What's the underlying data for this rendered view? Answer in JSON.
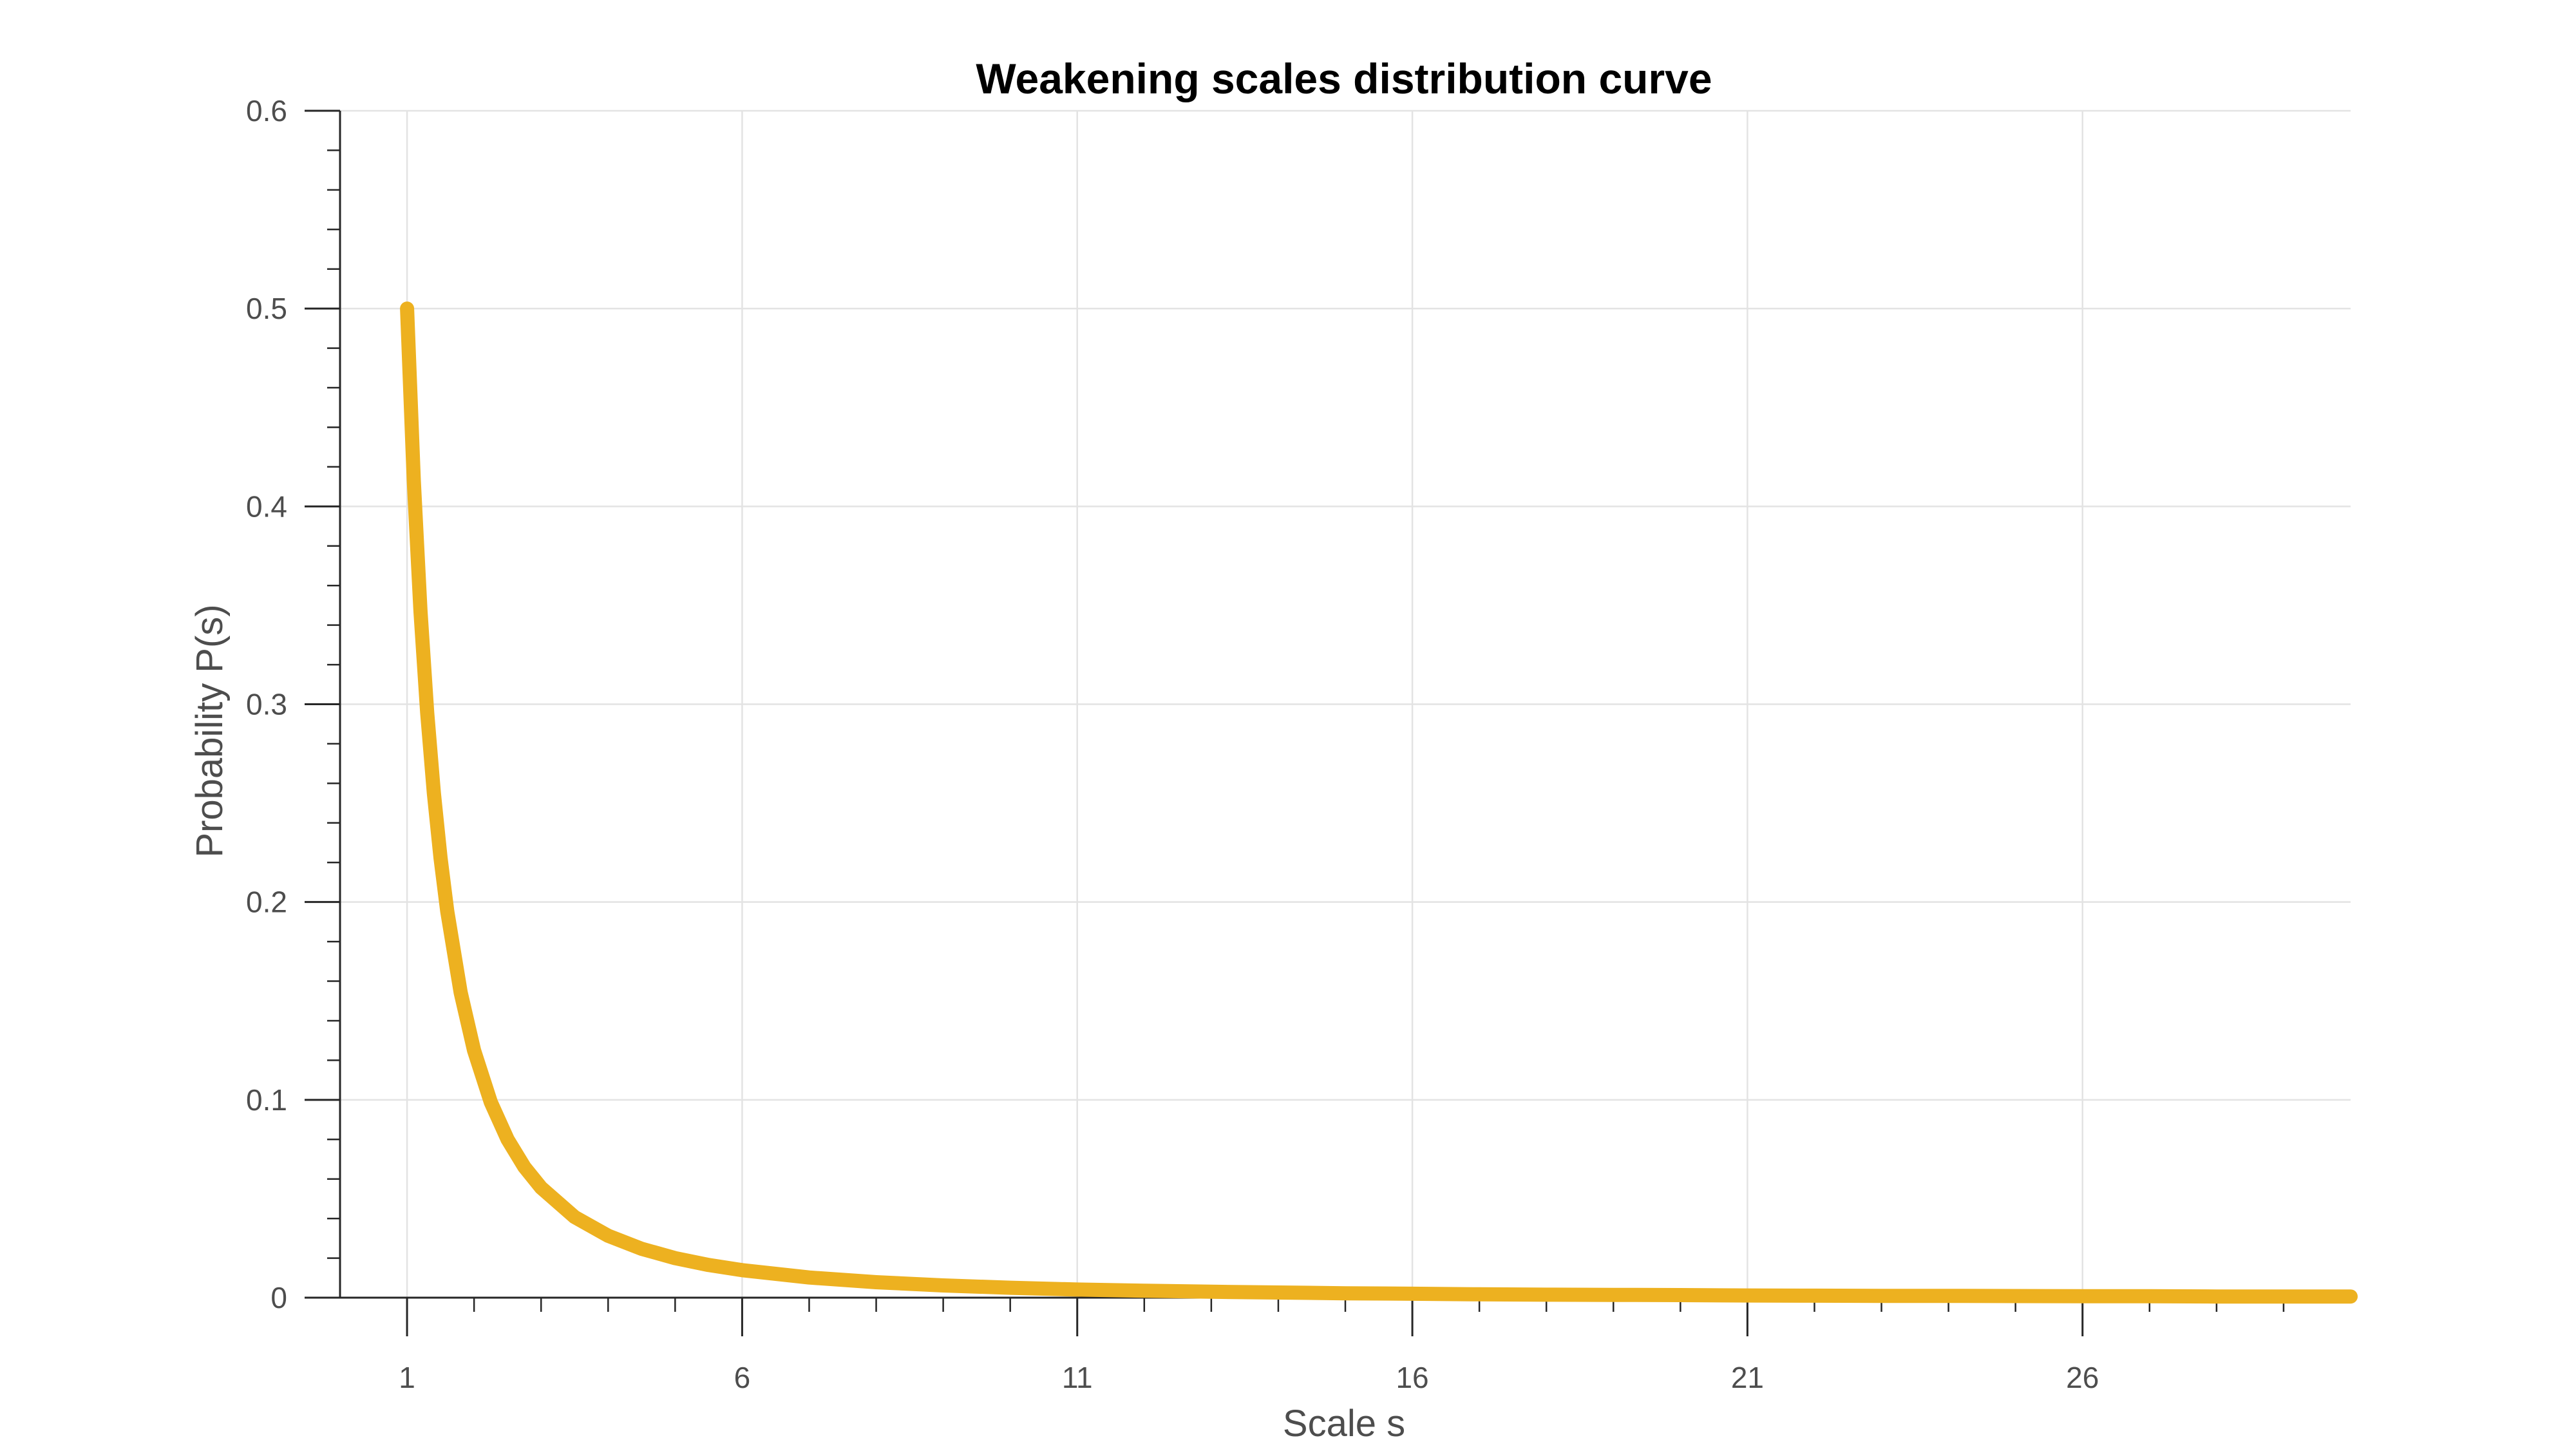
{
  "chart_data": {
    "type": "line",
    "title": "Weakening scales distribution curve",
    "xlabel": "Scale s",
    "ylabel": "Probability P(s)",
    "xlim": [
      0,
      30
    ],
    "ylim": [
      0,
      0.6
    ],
    "xticks": [
      1,
      6,
      11,
      16,
      21,
      26
    ],
    "xtick_labels": [
      "1",
      "6",
      "11",
      "16",
      "21",
      "26"
    ],
    "yticks": [
      0,
      0.1,
      0.2,
      0.3,
      0.4,
      0.5,
      0.6
    ],
    "ytick_labels": [
      "0",
      "0.1",
      "0.2",
      "0.3",
      "0.4",
      "0.5",
      "0.6"
    ],
    "grid": true,
    "legend": "none",
    "color": "#EDB120",
    "series": [
      {
        "x": [
          1,
          1.1,
          1.2,
          1.3,
          1.4,
          1.5,
          1.6,
          1.8,
          2,
          2.25,
          2.5,
          2.75,
          3,
          3.5,
          4,
          4.5,
          5,
          5.5,
          6,
          7,
          8,
          9,
          10,
          11,
          12,
          13,
          14,
          15,
          16,
          17,
          18,
          19,
          20,
          21,
          22,
          23,
          24,
          25,
          26,
          27,
          28,
          29,
          30
        ],
        "values": [
          0.5,
          0.4132,
          0.3472,
          0.2959,
          0.2551,
          0.2222,
          0.1953,
          0.1543,
          0.125,
          0.0988,
          0.08,
          0.0661,
          0.0556,
          0.0408,
          0.0313,
          0.0247,
          0.02,
          0.0165,
          0.0139,
          0.0102,
          0.0078,
          0.0062,
          0.005,
          0.0041,
          0.0035,
          0.003,
          0.0026,
          0.0022,
          0.002,
          0.0017,
          0.0015,
          0.0014,
          0.0013,
          0.0011,
          0.001,
          0.0009,
          0.0009,
          0.0008,
          0.0007,
          0.0007,
          0.0006,
          0.0006,
          0.0006
        ]
      }
    ]
  }
}
